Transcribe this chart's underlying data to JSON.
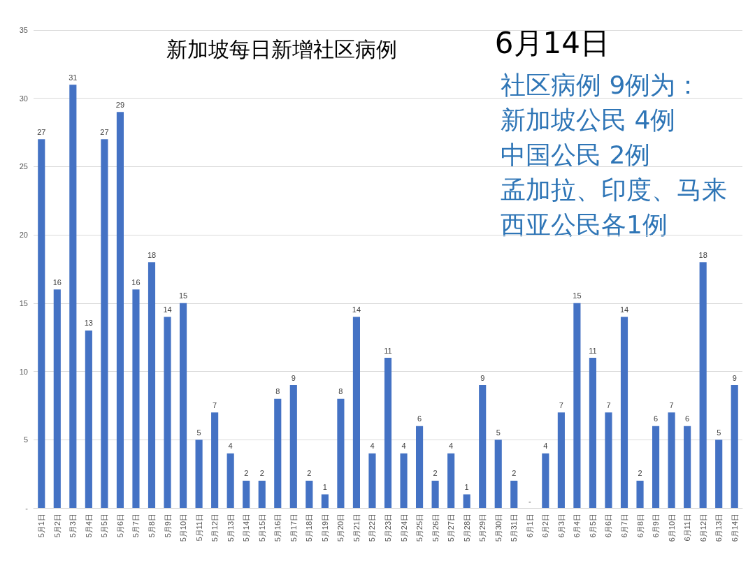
{
  "chart_data": {
    "type": "bar",
    "title": "新加坡每日新增社区病例",
    "categories": [
      "5月1日",
      "5月2日",
      "5月3日",
      "5月4日",
      "5月5日",
      "5月6日",
      "5月7日",
      "5月8日",
      "5月9日",
      "5月10日",
      "5月11日",
      "5月12日",
      "5月13日",
      "5月14日",
      "5月15日",
      "5月16日",
      "5月17日",
      "5月18日",
      "5月19日",
      "5月20日",
      "5月21日",
      "5月22日",
      "5月23日",
      "5月24日",
      "5月25日",
      "5月26日",
      "5月27日",
      "5月28日",
      "5月29日",
      "5月30日",
      "5月31日",
      "6月1日",
      "6月2日",
      "6月3日",
      "6月4日",
      "6月5日",
      "6月6日",
      "6月7日",
      "6月8日",
      "6月9日",
      "6月10日",
      "6月11日",
      "6月12日",
      "6月13日",
      "6月14日"
    ],
    "values": [
      27,
      16,
      31,
      13,
      27,
      29,
      16,
      18,
      14,
      15,
      5,
      7,
      4,
      2,
      2,
      8,
      9,
      2,
      1,
      8,
      14,
      4,
      11,
      4,
      6,
      2,
      4,
      1,
      9,
      5,
      2,
      0,
      4,
      7,
      15,
      11,
      7,
      14,
      2,
      6,
      7,
      6,
      18,
      5,
      9
    ],
    "value_labels": [
      "27",
      "16",
      "31",
      "13",
      "27",
      "29",
      "16",
      "18",
      "14",
      "15",
      "5",
      "7",
      "4",
      "2",
      "2",
      "8",
      "9",
      "2",
      "1",
      "8",
      "14",
      "4",
      "11",
      "4",
      "6",
      "2",
      "4",
      "1",
      "9",
      "5",
      "2",
      "-",
      "4",
      "7",
      "15",
      "11",
      "7",
      "14",
      "2",
      "6",
      "7",
      "6",
      "18",
      "5",
      "9"
    ],
    "color": "#4472c4",
    "ylim": [
      0,
      35
    ],
    "yticks": [
      {
        "value": 0,
        "label": "-"
      },
      5,
      10,
      15,
      20,
      25,
      30,
      35
    ],
    "grid": "y",
    "annotations": [
      "6月14日",
      "社区病例 9例为：",
      "新加坡公民 4例",
      "中国公民 2例",
      "孟加拉、印度、马来西亚公民各1例"
    ]
  }
}
